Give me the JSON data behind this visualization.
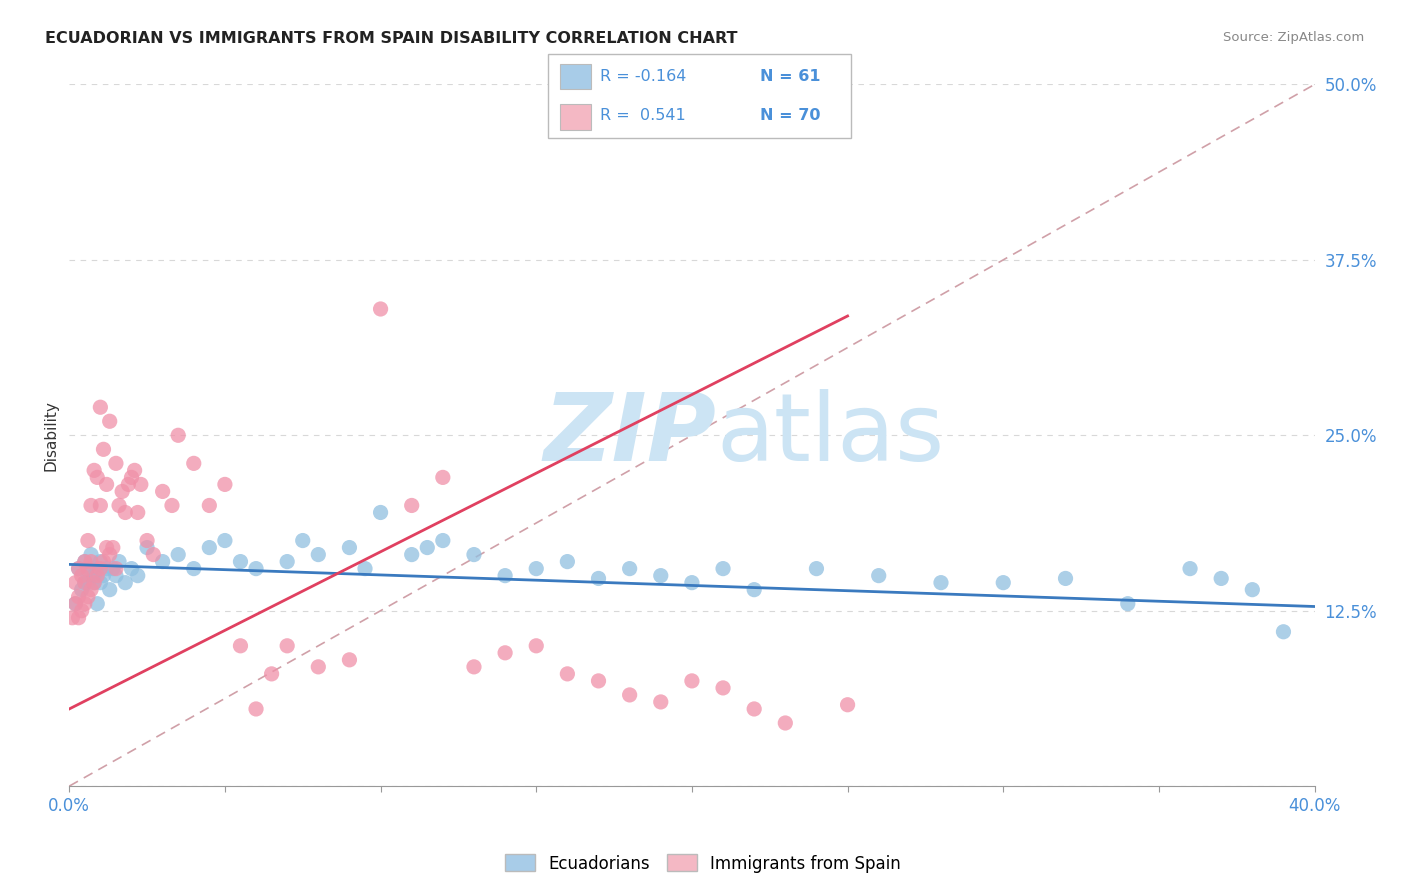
{
  "title": "ECUADORIAN VS IMMIGRANTS FROM SPAIN DISABILITY CORRELATION CHART",
  "source": "Source: ZipAtlas.com",
  "ylabel": "Disability",
  "xlim": [
    0.0,
    0.4
  ],
  "ylim": [
    0.0,
    0.5
  ],
  "ytick_positions": [
    0.0,
    0.125,
    0.25,
    0.375,
    0.5
  ],
  "ytick_labels": [
    "",
    "12.5%",
    "25.0%",
    "37.5%",
    "50.0%"
  ],
  "xtick_positions": [
    0.0,
    0.05,
    0.1,
    0.15,
    0.2,
    0.25,
    0.3,
    0.35,
    0.4
  ],
  "xtick_labels": [
    "0.0%",
    "",
    "",
    "",
    "",
    "",
    "",
    "",
    "40.0%"
  ],
  "r_blue": -0.164,
  "n_blue": 61,
  "r_pink": 0.541,
  "n_pink": 70,
  "blue_legend_color": "#a8cce8",
  "pink_legend_color": "#f4b8c4",
  "blue_scatter_color": "#90bfe0",
  "pink_scatter_color": "#f090a8",
  "trend_blue_color": "#3a7abf",
  "trend_pink_color": "#e04060",
  "ref_line_color": "#d0a0a8",
  "tick_color": "#4a90d9",
  "watermark_color": "#cce4f4",
  "blue_points_x": [
    0.002,
    0.003,
    0.004,
    0.005,
    0.005,
    0.006,
    0.006,
    0.007,
    0.007,
    0.008,
    0.008,
    0.009,
    0.009,
    0.01,
    0.01,
    0.011,
    0.012,
    0.013,
    0.014,
    0.015,
    0.016,
    0.018,
    0.02,
    0.022,
    0.025,
    0.03,
    0.035,
    0.04,
    0.045,
    0.05,
    0.055,
    0.06,
    0.07,
    0.075,
    0.08,
    0.09,
    0.095,
    0.1,
    0.11,
    0.115,
    0.12,
    0.13,
    0.14,
    0.15,
    0.16,
    0.17,
    0.18,
    0.19,
    0.2,
    0.21,
    0.22,
    0.24,
    0.26,
    0.28,
    0.3,
    0.32,
    0.34,
    0.36,
    0.37,
    0.38,
    0.39
  ],
  "blue_points_y": [
    0.13,
    0.155,
    0.14,
    0.145,
    0.16,
    0.15,
    0.145,
    0.155,
    0.165,
    0.15,
    0.145,
    0.155,
    0.13,
    0.16,
    0.145,
    0.15,
    0.155,
    0.14,
    0.155,
    0.15,
    0.16,
    0.145,
    0.155,
    0.15,
    0.17,
    0.16,
    0.165,
    0.155,
    0.17,
    0.175,
    0.16,
    0.155,
    0.16,
    0.175,
    0.165,
    0.17,
    0.155,
    0.195,
    0.165,
    0.17,
    0.175,
    0.165,
    0.15,
    0.155,
    0.16,
    0.148,
    0.155,
    0.15,
    0.145,
    0.155,
    0.14,
    0.155,
    0.15,
    0.145,
    0.145,
    0.148,
    0.13,
    0.155,
    0.148,
    0.14,
    0.11
  ],
  "pink_points_x": [
    0.001,
    0.002,
    0.002,
    0.003,
    0.003,
    0.003,
    0.004,
    0.004,
    0.005,
    0.005,
    0.005,
    0.006,
    0.006,
    0.006,
    0.007,
    0.007,
    0.007,
    0.008,
    0.008,
    0.009,
    0.009,
    0.01,
    0.01,
    0.01,
    0.011,
    0.011,
    0.012,
    0.012,
    0.013,
    0.013,
    0.014,
    0.015,
    0.015,
    0.016,
    0.017,
    0.018,
    0.019,
    0.02,
    0.021,
    0.022,
    0.023,
    0.025,
    0.027,
    0.03,
    0.033,
    0.035,
    0.04,
    0.045,
    0.05,
    0.055,
    0.06,
    0.065,
    0.07,
    0.08,
    0.09,
    0.1,
    0.11,
    0.12,
    0.13,
    0.14,
    0.15,
    0.16,
    0.17,
    0.18,
    0.19,
    0.2,
    0.21,
    0.22,
    0.23,
    0.25
  ],
  "pink_points_y": [
    0.12,
    0.13,
    0.145,
    0.12,
    0.135,
    0.155,
    0.125,
    0.15,
    0.13,
    0.145,
    0.16,
    0.135,
    0.155,
    0.175,
    0.14,
    0.16,
    0.2,
    0.145,
    0.225,
    0.15,
    0.22,
    0.155,
    0.2,
    0.27,
    0.16,
    0.24,
    0.17,
    0.215,
    0.165,
    0.26,
    0.17,
    0.155,
    0.23,
    0.2,
    0.21,
    0.195,
    0.215,
    0.22,
    0.225,
    0.195,
    0.215,
    0.175,
    0.165,
    0.21,
    0.2,
    0.25,
    0.23,
    0.2,
    0.215,
    0.1,
    0.055,
    0.08,
    0.1,
    0.085,
    0.09,
    0.34,
    0.2,
    0.22,
    0.085,
    0.095,
    0.1,
    0.08,
    0.075,
    0.065,
    0.06,
    0.075,
    0.07,
    0.055,
    0.045,
    0.058
  ],
  "trend_blue_start_x": 0.0,
  "trend_blue_end_x": 0.4,
  "trend_blue_start_y": 0.158,
  "trend_blue_end_y": 0.128,
  "trend_pink_start_x": 0.0,
  "trend_pink_end_x": 0.25,
  "trend_pink_start_y": 0.055,
  "trend_pink_end_y": 0.335
}
